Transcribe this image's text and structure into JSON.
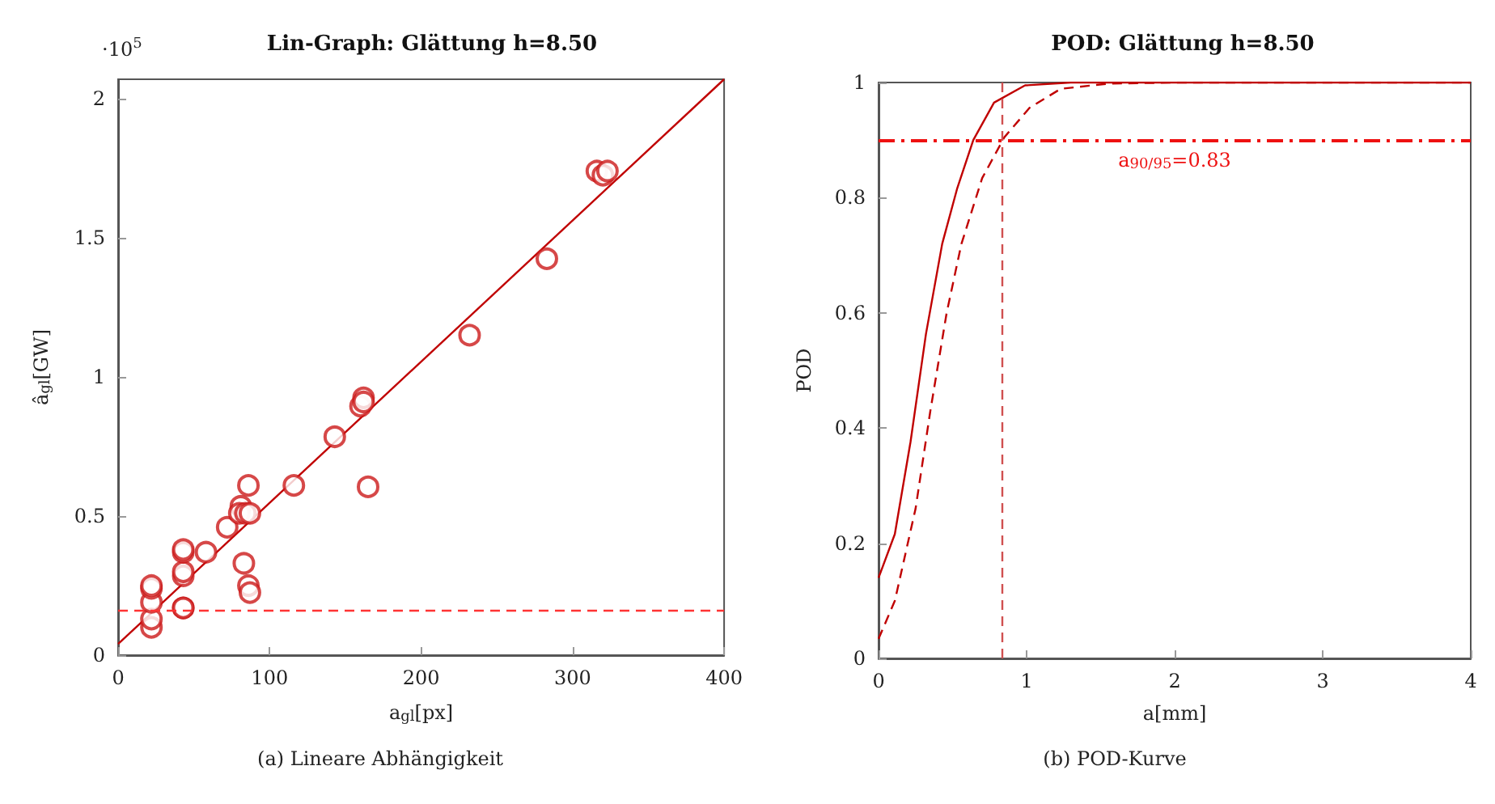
{
  "chart_data": [
    {
      "type": "scatter",
      "title": "Lin-Graph: Glättung h=8.50",
      "xlabel": "a$_{gl}$[px]",
      "ylabel": "â$_{gl}$[GW]",
      "xlim": [
        0,
        400
      ],
      "xticks": [
        0,
        100,
        200,
        300,
        400
      ],
      "ylim": [
        0,
        2.07
      ],
      "yticks": [
        0,
        0.5,
        1,
        1.5,
        2
      ],
      "series": [
        {
          "type": "scatter",
          "marker": "circle",
          "color": "#cc1a1a",
          "x": [
            22,
            22,
            22,
            22,
            22,
            43,
            43,
            43,
            43,
            43,
            43,
            58,
            72,
            81,
            80,
            84,
            87,
            86,
            83,
            86,
            87,
            116,
            143,
            160,
            162,
            162,
            165,
            232,
            283,
            316,
            320,
            323
          ],
          "values": [
            0.1,
            0.13,
            0.19,
            0.24,
            0.25,
            0.17,
            0.17,
            0.285,
            0.3,
            0.37,
            0.38,
            0.37,
            0.46,
            0.535,
            0.51,
            0.51,
            0.51,
            0.61,
            0.33,
            0.25,
            0.225,
            0.61,
            0.785,
            0.895,
            0.925,
            0.91,
            0.605,
            1.15,
            1.425,
            1.74,
            1.725,
            1.74
          ]
        },
        {
          "type": "line",
          "marker": "none",
          "line_style": "solid",
          "color": "#c00000",
          "x": [
            0,
            400
          ],
          "values": [
            0.04,
            2.07
          ]
        }
      ],
      "ref_lines": [
        {
          "axis": "y",
          "value": 0.16,
          "color": "#ff3333",
          "line_style": "dashed"
        }
      ],
      "annotations": [
        "·10$^{5}$",
        "(a) Lineare Abhängigkeit"
      ]
    },
    {
      "type": "line",
      "title": "POD: Glättung h=8.50",
      "xlabel": "a[mm]",
      "ylabel": "POD",
      "xlim": [
        0,
        4
      ],
      "xticks": [
        0,
        1,
        2,
        3,
        4
      ],
      "ylim": [
        0,
        1
      ],
      "yticks": [
        0,
        0.2,
        0.4,
        0.6,
        0.8,
        1
      ],
      "marker": "none",
      "series": [
        {
          "color": "#c00000",
          "line_style": "solid",
          "x": [
            0,
            0.11,
            0.216,
            0.32,
            0.43,
            0.53,
            0.64,
            0.78,
            0.99,
            1.3,
            2,
            3,
            4
          ],
          "values": [
            0.14,
            0.216,
            0.376,
            0.563,
            0.72,
            0.815,
            0.9,
            0.965,
            0.995,
            1,
            1,
            1,
            1
          ]
        },
        {
          "color": "#c00000",
          "line_style": "dashed",
          "x": [
            0,
            0.11,
            0.25,
            0.35,
            0.46,
            0.56,
            0.7,
            0.85,
            1.02,
            1.23,
            1.55,
            2,
            3,
            4
          ],
          "values": [
            0.034,
            0.1,
            0.26,
            0.43,
            0.6,
            0.72,
            0.834,
            0.905,
            0.956,
            0.989,
            0.998,
            1,
            1,
            1
          ]
        }
      ],
      "ref_lines": [
        {
          "axis": "y",
          "value": 0.9,
          "color": "#ee1111",
          "line_style": "dashdot",
          "label": "a$_{90/95}$=0.83"
        },
        {
          "axis": "x",
          "value": 0.83,
          "color": "#d05050",
          "line_style": "dashed"
        }
      ],
      "annotations": [
        "(b) POD-Kurve"
      ]
    }
  ]
}
